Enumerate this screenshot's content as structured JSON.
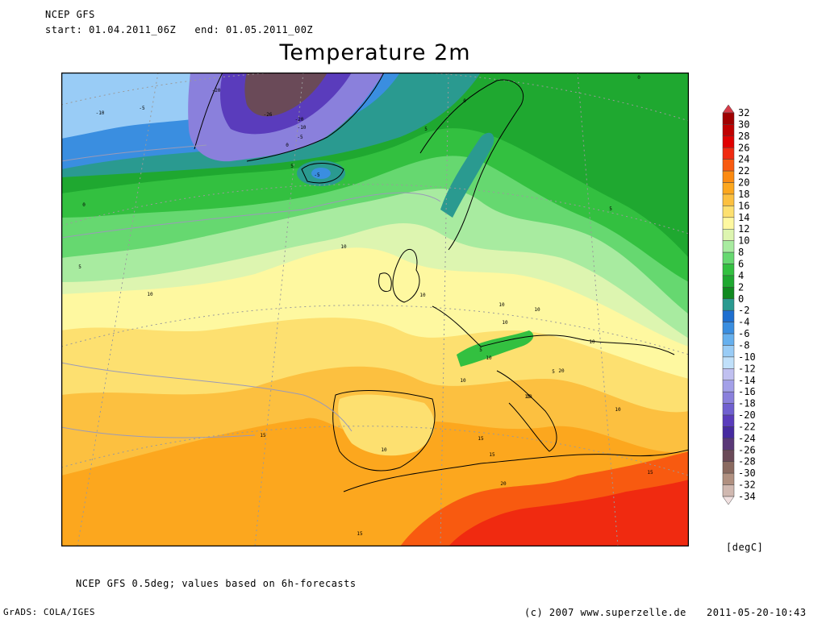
{
  "header": {
    "model": "NCEP GFS",
    "period": "start: 01.04.2011_06Z   end: 01.05.2011_00Z",
    "title": "Temperature 2m"
  },
  "legend": {
    "values": [
      "32",
      "30",
      "28",
      "26",
      "24",
      "22",
      "20",
      "18",
      "16",
      "14",
      "12",
      "10",
      "8",
      "6",
      "4",
      "2",
      "0",
      "-2",
      "-4",
      "-6",
      "-8",
      "-10",
      "-12",
      "-14",
      "-16",
      "-18",
      "-20",
      "-22",
      "-24",
      "-26",
      "-28",
      "-30",
      "-32",
      "-34"
    ],
    "colors": [
      "#d73b48",
      "#a00000",
      "#c00000",
      "#e00000",
      "#f02a10",
      "#f85a10",
      "#fb8a10",
      "#fca71e",
      "#fcc040",
      "#fde070",
      "#fef8a0",
      "#ddf5b0",
      "#a8eba0",
      "#66d870",
      "#33c040",
      "#1fa830",
      "#108a20",
      "#2a9a90",
      "#1e6fd0",
      "#3a8ee0",
      "#66b0ee",
      "#99ccf6",
      "#c0e0fa",
      "#c0c0f0",
      "#a3a0e8",
      "#8a80dc",
      "#7060d0",
      "#5a3cbc",
      "#462aa0",
      "#5a3878",
      "#6a4a58",
      "#8a6a60",
      "#b09080",
      "#d0b8b0"
    ],
    "unit": "[degC]"
  },
  "map": {
    "contour_labels": [
      "-10",
      "-5",
      "-20",
      "-26",
      "-20",
      "-10",
      "-5",
      "0",
      "0",
      "5",
      "-5",
      "0",
      "5",
      "5",
      "0",
      "5",
      "10",
      "5",
      "10",
      "10",
      "10",
      "10",
      "10",
      "10",
      "10",
      "10",
      "5",
      "10",
      "10",
      "15",
      "10",
      "15",
      "15",
      "20",
      "15",
      "15",
      "20",
      "15"
    ]
  },
  "footer": {
    "note": "NCEP GFS 0.5deg; values based on 6h-forecasts",
    "software": "GrADS: COLA/IGES",
    "copyright": "(c) 2007 www.superzelle.de",
    "timestamp": "2011-05-20-10:43"
  }
}
